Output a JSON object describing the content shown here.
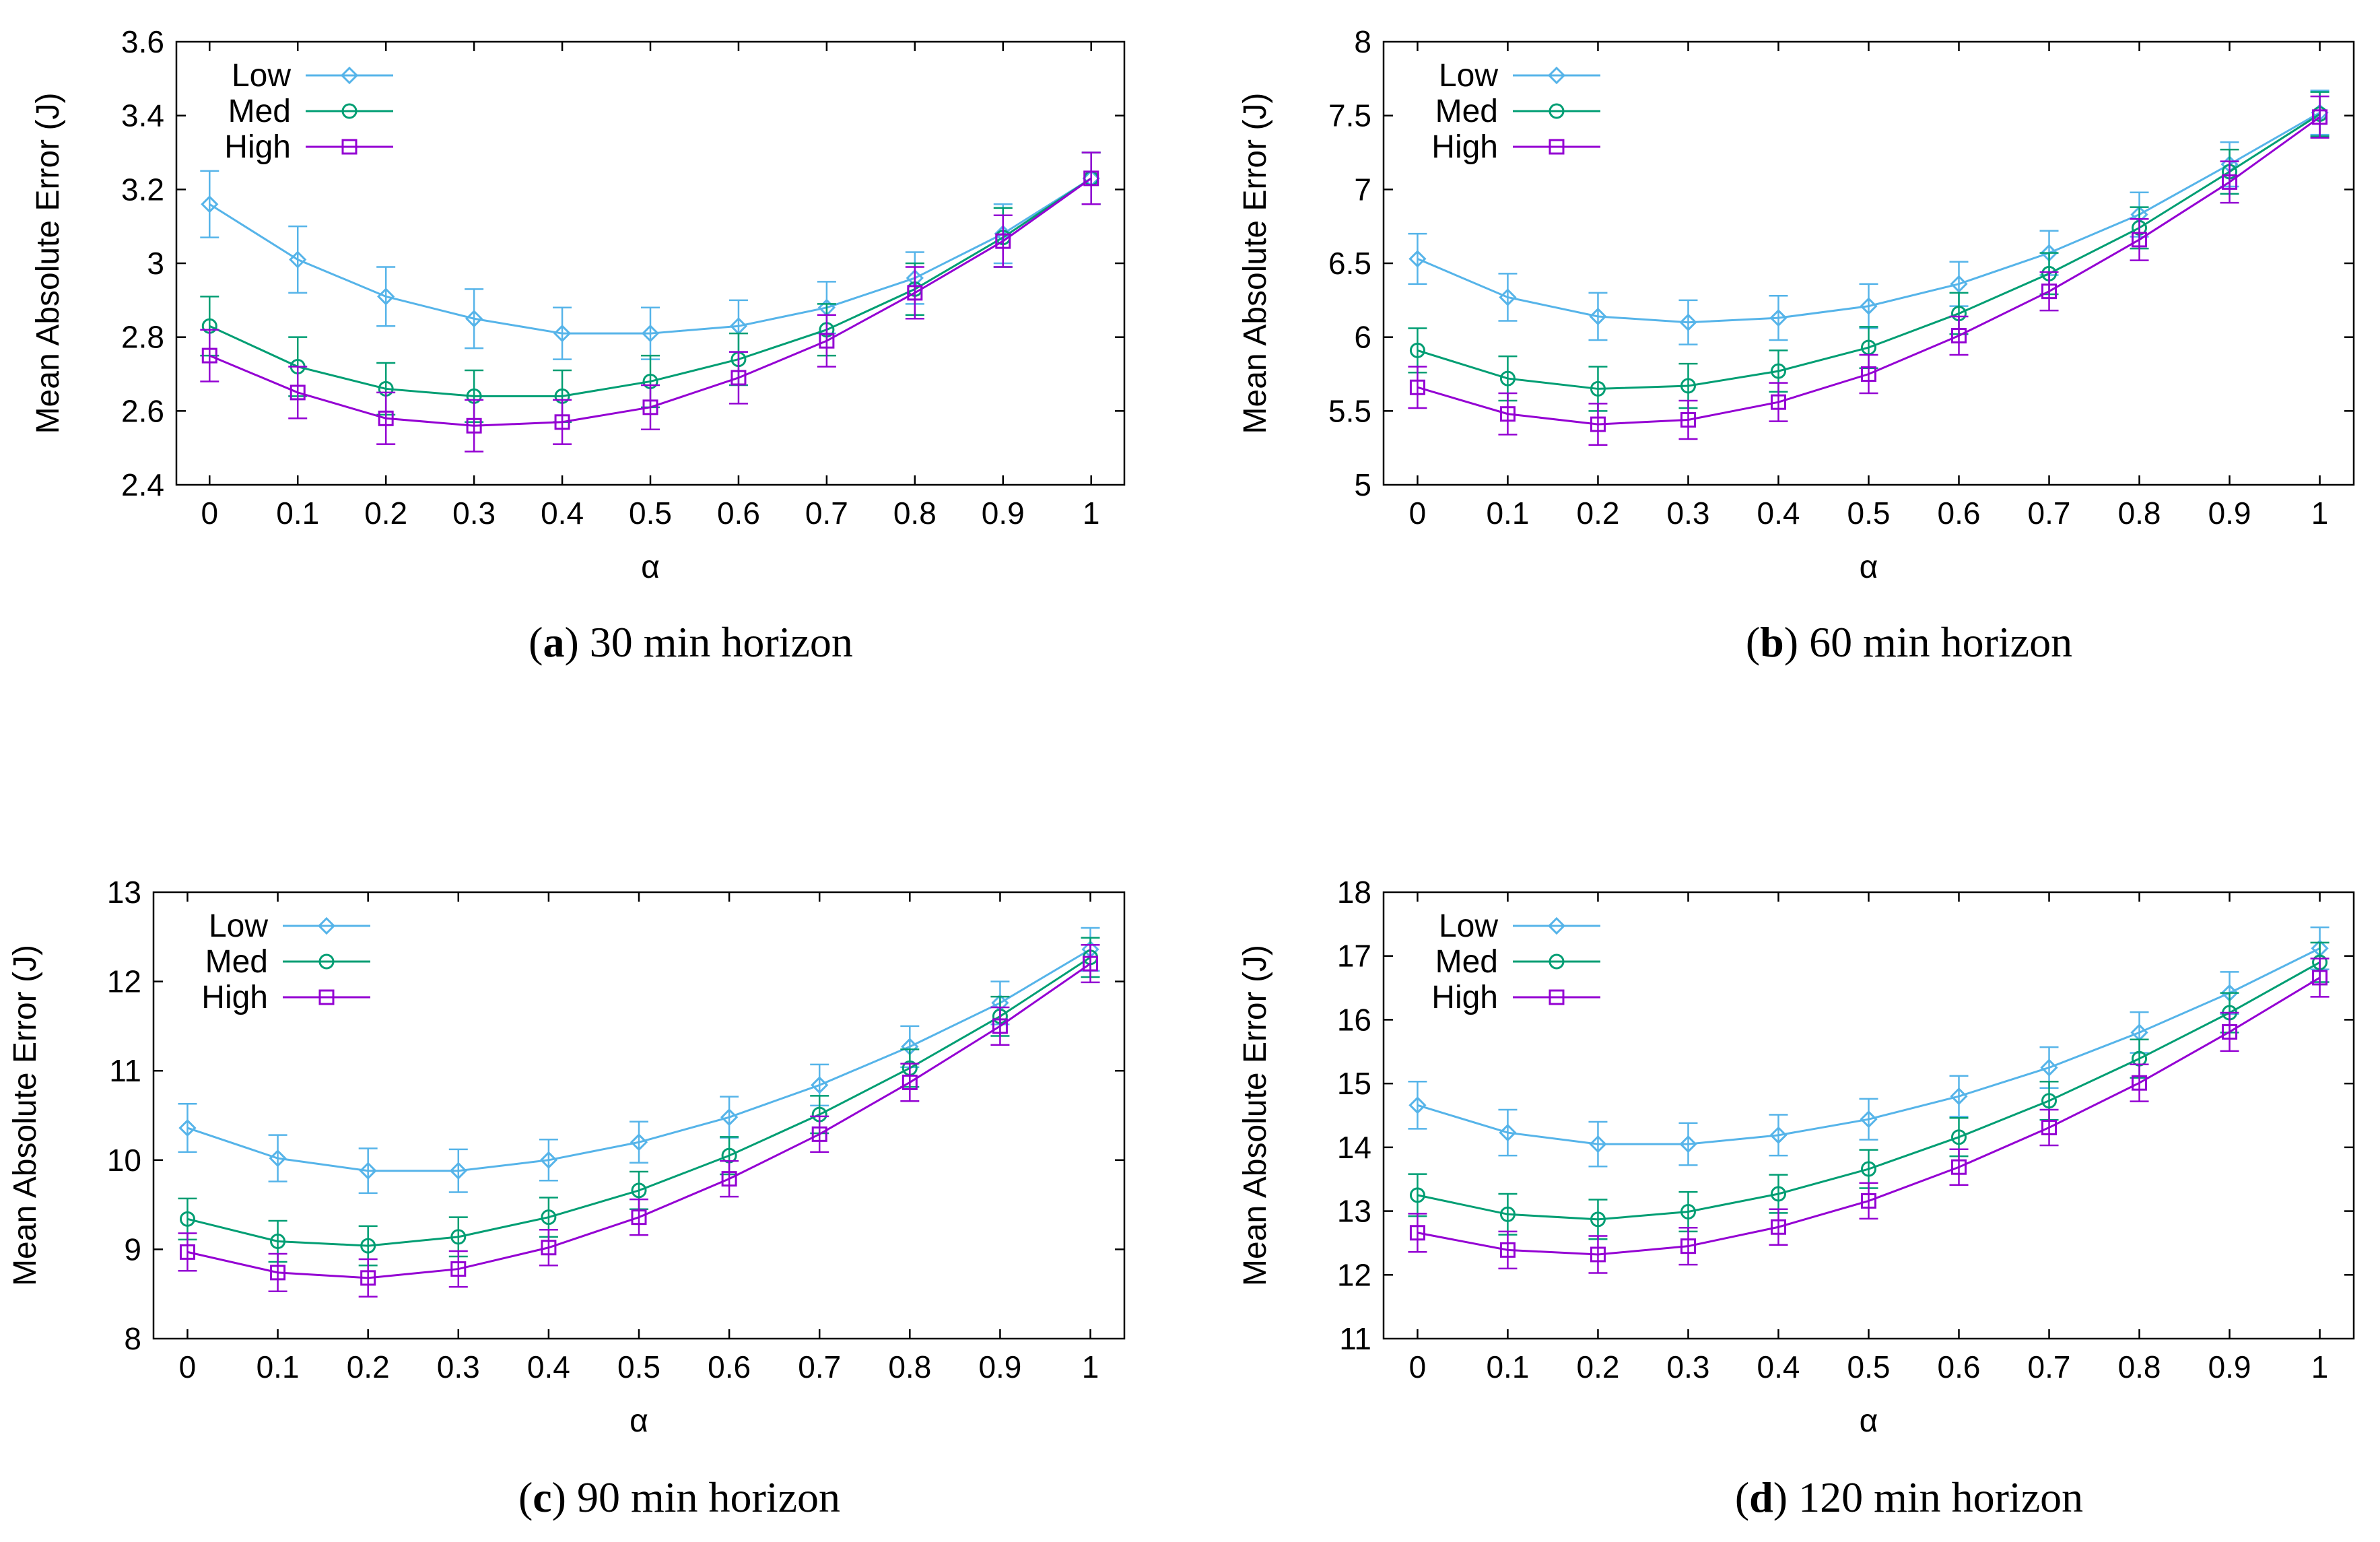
{
  "colors": {
    "Low": "#56b4e9",
    "Med": "#009e73",
    "High": "#9400d3"
  },
  "markers": {
    "Low": "diamond",
    "Med": "circle",
    "High": "square"
  },
  "chart_data": [
    {
      "type": "line",
      "caption_letter": "a",
      "caption_text": "30 min horizon",
      "xlabel": "α",
      "ylabel": "Mean Absolute Error (J)",
      "x": [
        0,
        0.1,
        0.2,
        0.3,
        0.4,
        0.5,
        0.6,
        0.7,
        0.8,
        0.9,
        1
      ],
      "xticks": [
        "0",
        "0.1",
        "0.2",
        "0.3",
        "0.4",
        "0.5",
        "0.6",
        "0.7",
        "0.8",
        "0.9",
        "1"
      ],
      "ylim": [
        2.4,
        3.6
      ],
      "yticks": [
        "2.4",
        "2.6",
        "2.8",
        "3",
        "3.2",
        "3.4",
        "3.6"
      ],
      "series": [
        {
          "name": "Low",
          "values": [
            3.16,
            3.01,
            2.91,
            2.85,
            2.81,
            2.81,
            2.83,
            2.88,
            2.96,
            3.08,
            3.23
          ],
          "err": [
            0.09,
            0.09,
            0.08,
            0.08,
            0.07,
            0.07,
            0.07,
            0.07,
            0.07,
            0.08,
            0.07
          ]
        },
        {
          "name": "Med",
          "values": [
            2.83,
            2.72,
            2.66,
            2.64,
            2.64,
            2.68,
            2.74,
            2.82,
            2.93,
            3.07,
            3.23
          ],
          "err": [
            0.08,
            0.08,
            0.07,
            0.07,
            0.07,
            0.07,
            0.07,
            0.07,
            0.07,
            0.08,
            0.07
          ]
        },
        {
          "name": "High",
          "values": [
            2.75,
            2.65,
            2.58,
            2.56,
            2.57,
            2.61,
            2.69,
            2.79,
            2.92,
            3.06,
            3.23
          ],
          "err": [
            0.07,
            0.07,
            0.07,
            0.07,
            0.06,
            0.06,
            0.07,
            0.07,
            0.07,
            0.07,
            0.07
          ]
        }
      ]
    },
    {
      "type": "line",
      "caption_letter": "b",
      "caption_text": "60 min horizon",
      "xlabel": "α",
      "ylabel": "Mean Absolute Error (J)",
      "x": [
        0,
        0.1,
        0.2,
        0.3,
        0.4,
        0.5,
        0.6,
        0.7,
        0.8,
        0.9,
        1
      ],
      "xticks": [
        "0",
        "0.1",
        "0.2",
        "0.3",
        "0.4",
        "0.5",
        "0.6",
        "0.7",
        "0.8",
        "0.9",
        "1"
      ],
      "ylim": [
        5,
        8
      ],
      "yticks": [
        "5",
        "5.5",
        "6",
        "6.5",
        "7",
        "7.5",
        "8"
      ],
      "series": [
        {
          "name": "Low",
          "values": [
            6.53,
            6.27,
            6.14,
            6.1,
            6.13,
            6.21,
            6.36,
            6.57,
            6.83,
            7.17,
            7.52
          ],
          "err": [
            0.17,
            0.16,
            0.16,
            0.15,
            0.15,
            0.15,
            0.15,
            0.15,
            0.15,
            0.15,
            0.15
          ]
        },
        {
          "name": "Med",
          "values": [
            5.91,
            5.72,
            5.65,
            5.67,
            5.77,
            5.93,
            6.16,
            6.43,
            6.74,
            7.12,
            7.51
          ],
          "err": [
            0.15,
            0.15,
            0.15,
            0.15,
            0.14,
            0.14,
            0.14,
            0.14,
            0.14,
            0.15,
            0.15
          ]
        },
        {
          "name": "High",
          "values": [
            5.66,
            5.48,
            5.41,
            5.44,
            5.56,
            5.75,
            6.01,
            6.31,
            6.66,
            7.05,
            7.49
          ],
          "err": [
            0.14,
            0.14,
            0.14,
            0.13,
            0.13,
            0.13,
            0.13,
            0.13,
            0.14,
            0.14,
            0.14
          ]
        }
      ]
    },
    {
      "type": "line",
      "caption_letter": "c",
      "caption_text": "90 min horizon",
      "xlabel": "α",
      "ylabel": "Mean Absolute Error (J)",
      "x": [
        0,
        0.1,
        0.2,
        0.3,
        0.4,
        0.5,
        0.6,
        0.7,
        0.8,
        0.9,
        1
      ],
      "xticks": [
        "0",
        "0.1",
        "0.2",
        "0.3",
        "0.4",
        "0.5",
        "0.6",
        "0.7",
        "0.8",
        "0.9",
        "1"
      ],
      "ylim": [
        8,
        13
      ],
      "yticks": [
        "8",
        "9",
        "10",
        "11",
        "12",
        "13"
      ],
      "series": [
        {
          "name": "Low",
          "values": [
            10.36,
            10.02,
            9.88,
            9.88,
            10.0,
            10.2,
            10.48,
            10.84,
            11.27,
            11.76,
            12.36
          ],
          "err": [
            0.27,
            0.26,
            0.25,
            0.24,
            0.23,
            0.23,
            0.23,
            0.23,
            0.23,
            0.24,
            0.24
          ]
        },
        {
          "name": "Med",
          "values": [
            9.34,
            9.09,
            9.04,
            9.14,
            9.36,
            9.66,
            10.05,
            10.51,
            11.03,
            11.61,
            12.27
          ],
          "err": [
            0.23,
            0.23,
            0.22,
            0.22,
            0.22,
            0.21,
            0.21,
            0.21,
            0.21,
            0.22,
            0.22
          ]
        },
        {
          "name": "High",
          "values": [
            8.97,
            8.74,
            8.68,
            8.78,
            9.02,
            9.36,
            9.79,
            10.29,
            10.87,
            11.5,
            12.2
          ],
          "err": [
            0.21,
            0.21,
            0.21,
            0.2,
            0.2,
            0.2,
            0.2,
            0.2,
            0.21,
            0.21,
            0.21
          ]
        }
      ]
    },
    {
      "type": "line",
      "caption_letter": "d",
      "caption_text": "120 min horizon",
      "xlabel": "α",
      "ylabel": "Mean Absolute Error (J)",
      "x": [
        0,
        0.1,
        0.2,
        0.3,
        0.4,
        0.5,
        0.6,
        0.7,
        0.8,
        0.9,
        1
      ],
      "xticks": [
        "0",
        "0.1",
        "0.2",
        "0.3",
        "0.4",
        "0.5",
        "0.6",
        "0.7",
        "0.8",
        "0.9",
        "1"
      ],
      "ylim": [
        11,
        18
      ],
      "yticks": [
        "11",
        "12",
        "13",
        "14",
        "15",
        "16",
        "17",
        "18"
      ],
      "series": [
        {
          "name": "Low",
          "values": [
            14.66,
            14.23,
            14.05,
            14.05,
            14.19,
            14.44,
            14.8,
            15.25,
            15.8,
            16.42,
            17.12
          ],
          "err": [
            0.37,
            0.36,
            0.35,
            0.33,
            0.32,
            0.32,
            0.32,
            0.32,
            0.32,
            0.33,
            0.33
          ]
        },
        {
          "name": "Med",
          "values": [
            13.25,
            12.95,
            12.87,
            12.99,
            13.27,
            13.66,
            14.16,
            14.73,
            15.39,
            16.11,
            16.9
          ],
          "err": [
            0.33,
            0.32,
            0.31,
            0.31,
            0.3,
            0.3,
            0.3,
            0.3,
            0.3,
            0.31,
            0.31
          ]
        },
        {
          "name": "High",
          "values": [
            12.66,
            12.39,
            12.32,
            12.45,
            12.75,
            13.16,
            13.69,
            14.31,
            15.01,
            15.81,
            16.66
          ],
          "err": [
            0.3,
            0.29,
            0.29,
            0.29,
            0.28,
            0.28,
            0.28,
            0.28,
            0.29,
            0.3,
            0.3
          ]
        }
      ]
    }
  ]
}
